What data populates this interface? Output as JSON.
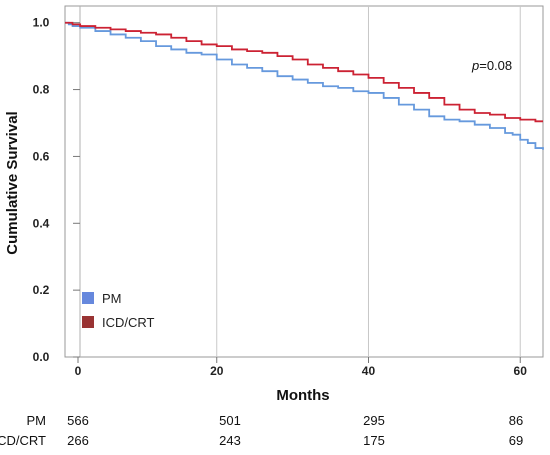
{
  "chart_data": {
    "type": "line",
    "ylabel": "Cumulative Survival",
    "xlabel": "Months",
    "xlim": [
      0,
      63
    ],
    "ylim": [
      0,
      1.05
    ],
    "x_ticks": [
      "0",
      "20",
      "40",
      "60"
    ],
    "x_tick_values": [
      0,
      20,
      40,
      60
    ],
    "y_ticks": [
      "0.0",
      "0.2",
      "0.4",
      "0.6",
      "0.8",
      "1.0"
    ],
    "y_tick_values": [
      0.0,
      0.2,
      0.4,
      0.6,
      0.8,
      1.0
    ],
    "grid": "vertical",
    "legend_position": "bottom-left",
    "annotation": {
      "italic": "p",
      "rest": "=0.08"
    },
    "series": [
      {
        "name": "PM",
        "color": "#6699dd",
        "points": [
          [
            0,
            1.0
          ],
          [
            0.5,
            0.995
          ],
          [
            1,
            0.99
          ],
          [
            2,
            0.985
          ],
          [
            4,
            0.975
          ],
          [
            6,
            0.965
          ],
          [
            8,
            0.955
          ],
          [
            10,
            0.945
          ],
          [
            12,
            0.93
          ],
          [
            14,
            0.92
          ],
          [
            16,
            0.91
          ],
          [
            18,
            0.905
          ],
          [
            20,
            0.89
          ],
          [
            22,
            0.875
          ],
          [
            24,
            0.865
          ],
          [
            26,
            0.855
          ],
          [
            28,
            0.84
          ],
          [
            30,
            0.83
          ],
          [
            32,
            0.82
          ],
          [
            34,
            0.81
          ],
          [
            36,
            0.805
          ],
          [
            38,
            0.795
          ],
          [
            40,
            0.79
          ],
          [
            42,
            0.775
          ],
          [
            44,
            0.755
          ],
          [
            46,
            0.74
          ],
          [
            48,
            0.72
          ],
          [
            50,
            0.71
          ],
          [
            52,
            0.705
          ],
          [
            54,
            0.695
          ],
          [
            56,
            0.685
          ],
          [
            58,
            0.67
          ],
          [
            59,
            0.665
          ],
          [
            60,
            0.65
          ],
          [
            61,
            0.64
          ],
          [
            62,
            0.625
          ],
          [
            63,
            0.62
          ]
        ]
      },
      {
        "name": "ICD/CRT",
        "color": "#cc2233",
        "points": [
          [
            0,
            1.0
          ],
          [
            1,
            0.995
          ],
          [
            2,
            0.99
          ],
          [
            4,
            0.985
          ],
          [
            6,
            0.98
          ],
          [
            8,
            0.975
          ],
          [
            10,
            0.97
          ],
          [
            12,
            0.965
          ],
          [
            14,
            0.955
          ],
          [
            16,
            0.945
          ],
          [
            18,
            0.935
          ],
          [
            20,
            0.93
          ],
          [
            22,
            0.92
          ],
          [
            24,
            0.915
          ],
          [
            26,
            0.91
          ],
          [
            28,
            0.9
          ],
          [
            30,
            0.89
          ],
          [
            32,
            0.875
          ],
          [
            34,
            0.865
          ],
          [
            36,
            0.855
          ],
          [
            38,
            0.845
          ],
          [
            40,
            0.835
          ],
          [
            42,
            0.82
          ],
          [
            44,
            0.805
          ],
          [
            46,
            0.79
          ],
          [
            48,
            0.775
          ],
          [
            50,
            0.755
          ],
          [
            52,
            0.74
          ],
          [
            54,
            0.73
          ],
          [
            56,
            0.725
          ],
          [
            58,
            0.715
          ],
          [
            60,
            0.71
          ],
          [
            62,
            0.705
          ],
          [
            63,
            0.705
          ]
        ]
      }
    ],
    "legend": [
      {
        "label": "PM",
        "color": "#6688dd"
      },
      {
        "label": "ICD/CRT",
        "color": "#993333"
      }
    ],
    "risk_table": {
      "rows": [
        {
          "label": "PM",
          "values": [
            "566",
            "501",
            "295",
            "86"
          ]
        },
        {
          "label": "ICD/CRT",
          "values": [
            "266",
            "243",
            "175",
            "69"
          ]
        }
      ]
    }
  }
}
